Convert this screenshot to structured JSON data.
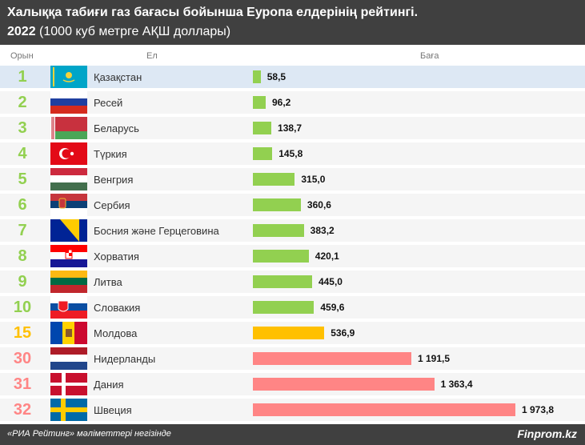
{
  "header": {
    "title": "Халыққа табиғи газ бағасы бойынша Еуропа елдерінің рейтингі.",
    "year": "2022",
    "subtitle": "(1000 куб метрге АҚШ доллары)"
  },
  "columns": {
    "rank": "Орын",
    "country": "Ел",
    "price": "Баға"
  },
  "colors": {
    "top10": "#92d050",
    "moldova": "#ffc000",
    "bottom": "#ff8585"
  },
  "chart_data": {
    "type": "bar",
    "orientation": "horizontal",
    "rows": [
      {
        "rank": "1",
        "country": "Қазақстан",
        "value": 58.5,
        "label": "58,5",
        "color": "#92d050",
        "flag": "kazakhstan-flag"
      },
      {
        "rank": "2",
        "country": "Ресей",
        "value": 96.2,
        "label": "96,2",
        "color": "#92d050",
        "flag": "russia-flag"
      },
      {
        "rank": "3",
        "country": "Беларусь",
        "value": 138.7,
        "label": "138,7",
        "color": "#92d050",
        "flag": "belarus-flag"
      },
      {
        "rank": "4",
        "country": "Түркия",
        "value": 145.8,
        "label": "145,8",
        "color": "#92d050",
        "flag": "turkey-flag"
      },
      {
        "rank": "5",
        "country": "Венгрия",
        "value": 315.0,
        "label": "315,0",
        "color": "#92d050",
        "flag": "hungary-flag"
      },
      {
        "rank": "6",
        "country": "Сербия",
        "value": 360.6,
        "label": "360,6",
        "color": "#92d050",
        "flag": "serbia-flag"
      },
      {
        "rank": "7",
        "country": "Босния және Герцеговина",
        "value": 383.2,
        "label": "383,2",
        "color": "#92d050",
        "flag": "bosnia-flag"
      },
      {
        "rank": "8",
        "country": "Хорватия",
        "value": 420.1,
        "label": "420,1",
        "color": "#92d050",
        "flag": "croatia-flag"
      },
      {
        "rank": "9",
        "country": "Литва",
        "value": 445.0,
        "label": "445,0",
        "color": "#92d050",
        "flag": "lithuania-flag"
      },
      {
        "rank": "10",
        "country": "Словакия",
        "value": 459.6,
        "label": "459,6",
        "color": "#92d050",
        "flag": "slovakia-flag"
      },
      {
        "rank": "15",
        "country": "Молдова",
        "value": 536.9,
        "label": "536,9",
        "color": "#ffc000",
        "flag": "moldova-flag"
      },
      {
        "rank": "30",
        "country": "Нидерланды",
        "value": 1191.5,
        "label": "1 191,5",
        "color": "#ff8585",
        "flag": "netherlands-flag"
      },
      {
        "rank": "31",
        "country": "Дания",
        "value": 1363.4,
        "label": "1 363,4",
        "color": "#ff8585",
        "flag": "denmark-flag"
      },
      {
        "rank": "32",
        "country": "Швеция",
        "value": 1973.8,
        "label": "1 973,8",
        "color": "#ff8585",
        "flag": "sweden-flag"
      }
    ]
  },
  "footer": {
    "source": "«РИА Рейтинг» мәліметтері негізінде",
    "brand": "Finprom.kz"
  }
}
